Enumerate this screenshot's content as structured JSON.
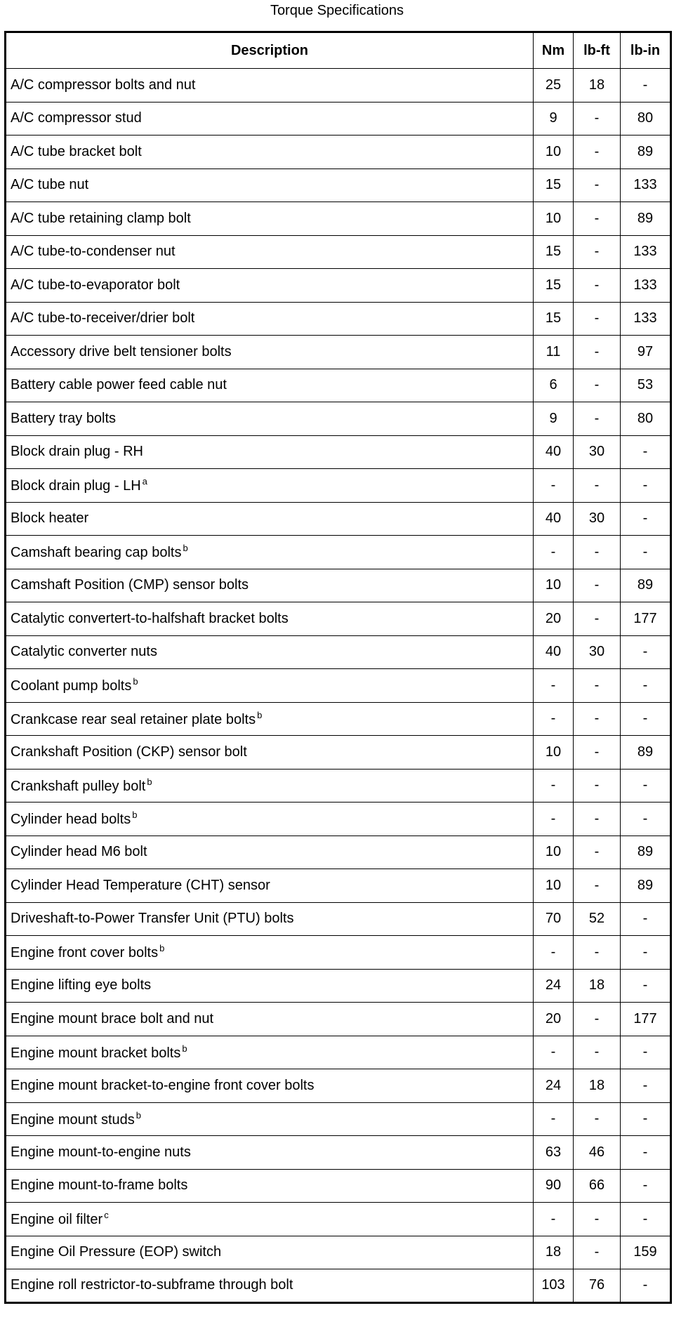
{
  "title": "Torque Specifications",
  "headers": [
    "Description",
    "Nm",
    "lb-ft",
    "lb-in"
  ],
  "rows": [
    {
      "description": "A/C compressor bolts and nut",
      "note": "",
      "nm": "25",
      "lbft": "18",
      "lbin": "-"
    },
    {
      "description": "A/C compressor stud",
      "note": "",
      "nm": "9",
      "lbft": "-",
      "lbin": "80"
    },
    {
      "description": "A/C tube bracket bolt",
      "note": "",
      "nm": "10",
      "lbft": "-",
      "lbin": "89"
    },
    {
      "description": "A/C tube nut",
      "note": "",
      "nm": "15",
      "lbft": "-",
      "lbin": "133"
    },
    {
      "description": "A/C tube retaining clamp bolt",
      "note": "",
      "nm": "10",
      "lbft": "-",
      "lbin": "89"
    },
    {
      "description": "A/C tube-to-condenser nut",
      "note": "",
      "nm": "15",
      "lbft": "-",
      "lbin": "133"
    },
    {
      "description": "A/C tube-to-evaporator bolt",
      "note": "",
      "nm": "15",
      "lbft": "-",
      "lbin": "133"
    },
    {
      "description": "A/C tube-to-receiver/drier bolt",
      "note": "",
      "nm": "15",
      "lbft": "-",
      "lbin": "133"
    },
    {
      "description": "Accessory drive belt tensioner bolts",
      "note": "",
      "nm": "11",
      "lbft": "-",
      "lbin": "97"
    },
    {
      "description": "Battery cable power feed cable nut",
      "note": "",
      "nm": "6",
      "lbft": "-",
      "lbin": "53"
    },
    {
      "description": "Battery tray bolts",
      "note": "",
      "nm": "9",
      "lbft": "-",
      "lbin": "80"
    },
    {
      "description": "Block drain plug - RH",
      "note": "",
      "nm": "40",
      "lbft": "30",
      "lbin": "-"
    },
    {
      "description": "Block drain plug - LH",
      "note": "a",
      "nm": "-",
      "lbft": "-",
      "lbin": "-"
    },
    {
      "description": "Block heater",
      "note": "",
      "nm": "40",
      "lbft": "30",
      "lbin": "-"
    },
    {
      "description": "Camshaft bearing cap bolts",
      "note": "b",
      "nm": "-",
      "lbft": "-",
      "lbin": "-"
    },
    {
      "description": "Camshaft Position (CMP) sensor bolts",
      "note": "",
      "nm": "10",
      "lbft": "-",
      "lbin": "89"
    },
    {
      "description": "Catalytic convertert-to-halfshaft bracket bolts",
      "note": "",
      "nm": "20",
      "lbft": "-",
      "lbin": "177"
    },
    {
      "description": "Catalytic converter nuts",
      "note": "",
      "nm": "40",
      "lbft": "30",
      "lbin": "-"
    },
    {
      "description": "Coolant pump bolts",
      "note": "b",
      "nm": "-",
      "lbft": "-",
      "lbin": "-"
    },
    {
      "description": "Crankcase rear seal retainer plate bolts",
      "note": "b",
      "nm": "-",
      "lbft": "-",
      "lbin": "-"
    },
    {
      "description": "Crankshaft Position (CKP) sensor bolt",
      "note": "",
      "nm": "10",
      "lbft": "-",
      "lbin": "89"
    },
    {
      "description": "Crankshaft pulley bolt",
      "note": "b",
      "nm": "-",
      "lbft": "-",
      "lbin": "-"
    },
    {
      "description": "Cylinder head bolts",
      "note": "b",
      "nm": "-",
      "lbft": "-",
      "lbin": "-"
    },
    {
      "description": "Cylinder head M6 bolt",
      "note": "",
      "nm": "10",
      "lbft": "-",
      "lbin": "89"
    },
    {
      "description": "Cylinder Head Temperature (CHT) sensor",
      "note": "",
      "nm": "10",
      "lbft": "-",
      "lbin": "89"
    },
    {
      "description": "Driveshaft-to-Power Transfer Unit (PTU) bolts",
      "note": "",
      "nm": "70",
      "lbft": "52",
      "lbin": "-"
    },
    {
      "description": "Engine front cover bolts",
      "note": "b",
      "nm": "-",
      "lbft": "-",
      "lbin": "-"
    },
    {
      "description": "Engine lifting eye bolts",
      "note": "",
      "nm": "24",
      "lbft": "18",
      "lbin": "-"
    },
    {
      "description": "Engine mount brace bolt and nut",
      "note": "",
      "nm": "20",
      "lbft": "-",
      "lbin": "177"
    },
    {
      "description": "Engine mount bracket bolts",
      "note": "b",
      "nm": "-",
      "lbft": "-",
      "lbin": "-"
    },
    {
      "description": "Engine mount bracket-to-engine front cover bolts",
      "note": "",
      "nm": "24",
      "lbft": "18",
      "lbin": "-"
    },
    {
      "description": "Engine mount studs",
      "note": "b",
      "nm": "-",
      "lbft": "-",
      "lbin": "-"
    },
    {
      "description": "Engine mount-to-engine nuts",
      "note": "",
      "nm": "63",
      "lbft": "46",
      "lbin": "-"
    },
    {
      "description": "Engine mount-to-frame bolts",
      "note": "",
      "nm": "90",
      "lbft": "66",
      "lbin": "-"
    },
    {
      "description": "Engine oil filter",
      "note": "c",
      "nm": "-",
      "lbft": "-",
      "lbin": "-"
    },
    {
      "description": "Engine Oil Pressure (EOP) switch",
      "note": "",
      "nm": "18",
      "lbft": "-",
      "lbin": "159"
    },
    {
      "description": "Engine roll restrictor-to-subframe through bolt",
      "note": "",
      "nm": "103",
      "lbft": "76",
      "lbin": "-"
    }
  ]
}
